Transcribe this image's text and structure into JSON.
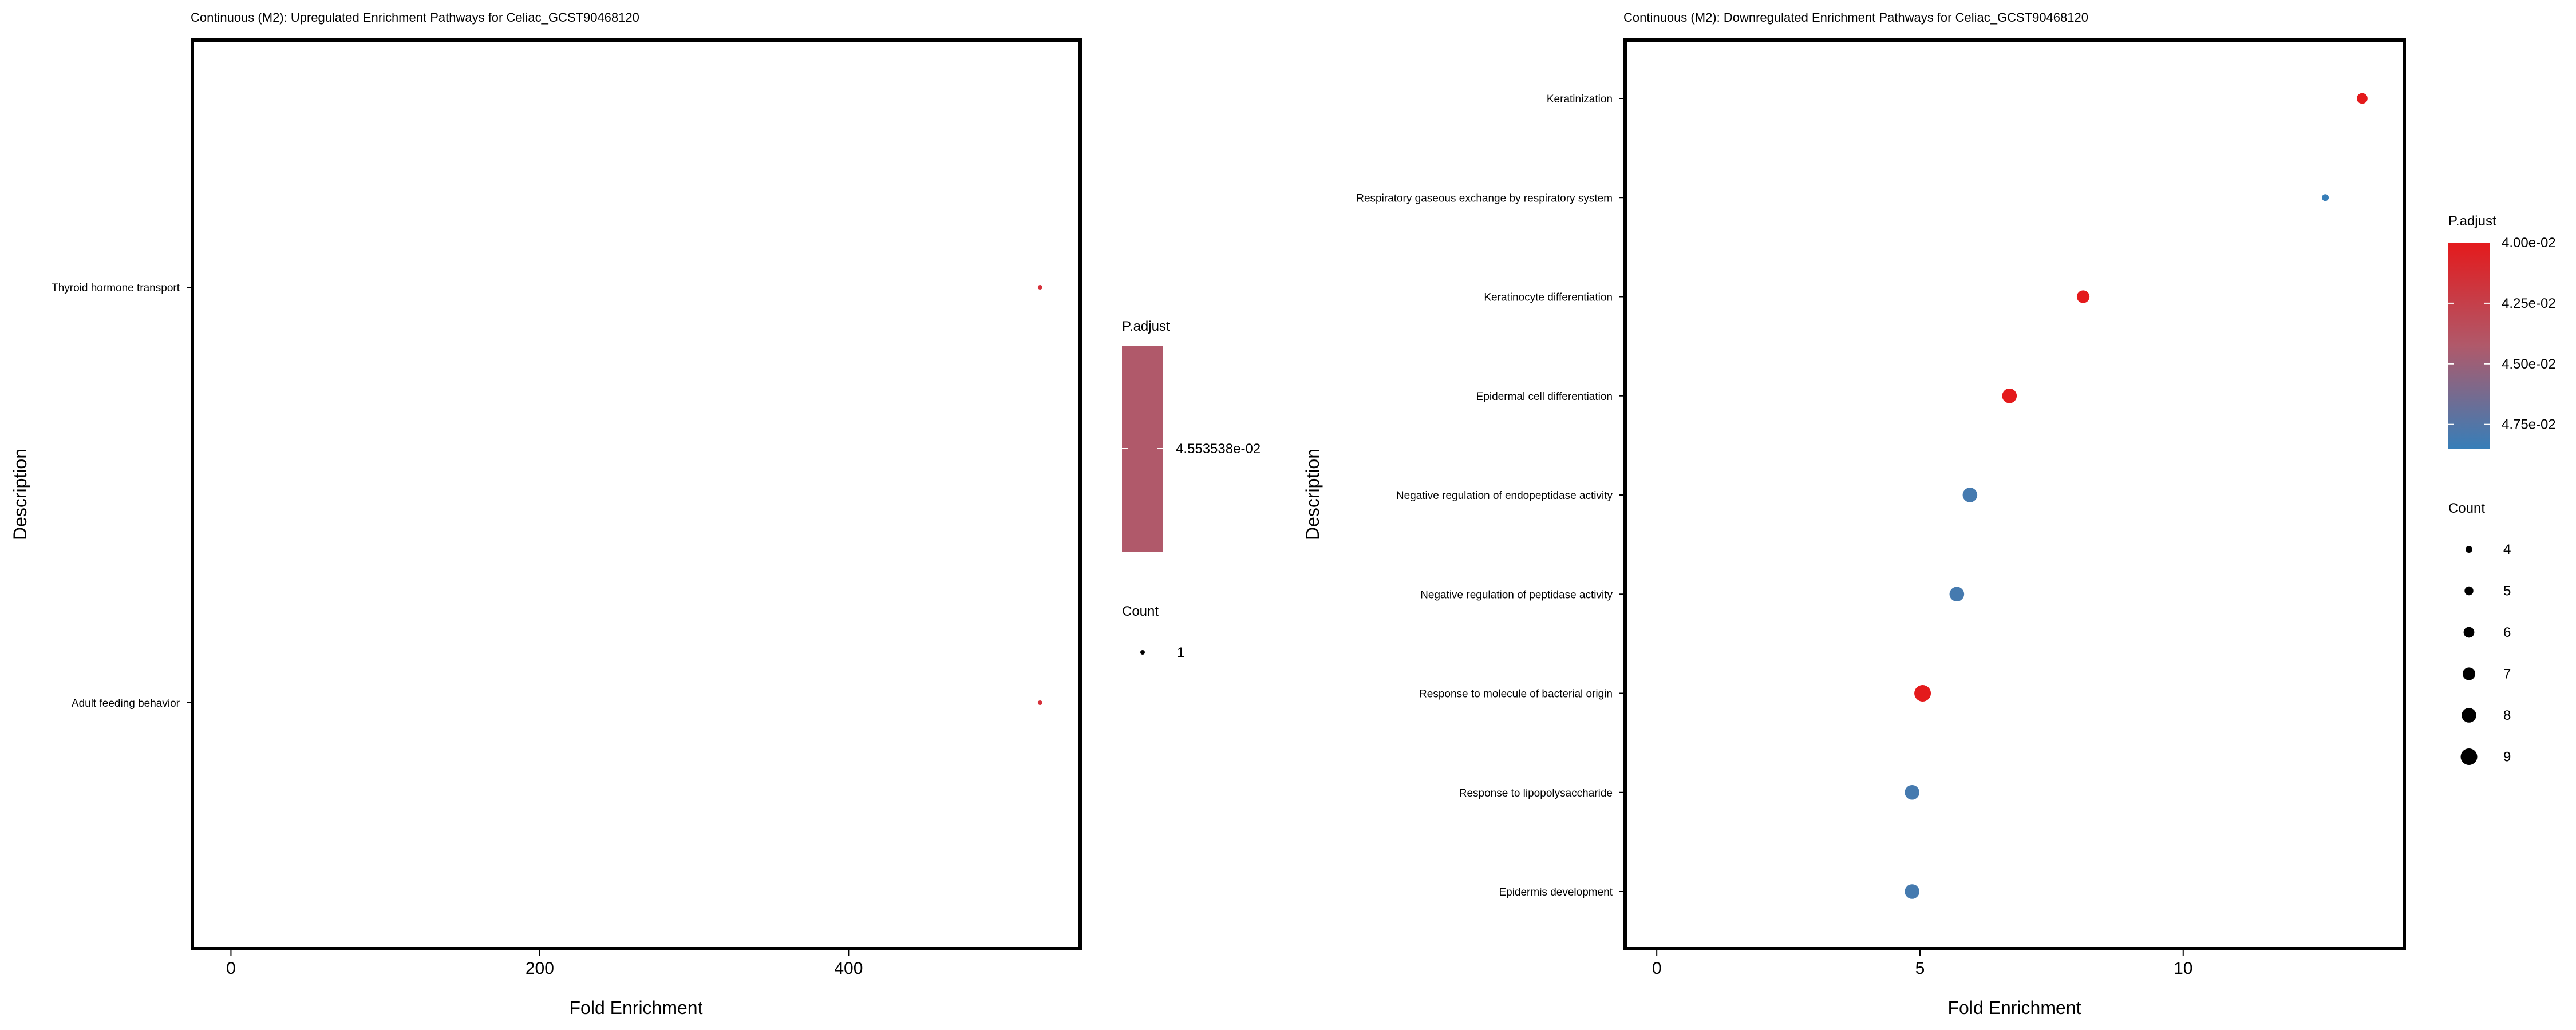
{
  "chart_data": [
    {
      "type": "scatter",
      "title": "Continuous (M2): Upregulated Enrichment Pathways for Celiac_GCST90468120",
      "xlabel": "Fold Enrichment",
      "ylabel": "Description",
      "xlim": [
        -25,
        550
      ],
      "xticks": [
        0,
        200,
        400
      ],
      "grid": false,
      "categories": [
        "Thyroid hormone transport",
        "Adult feeding behavior"
      ],
      "points": [
        {
          "description": "Thyroid hormone transport",
          "x": 524,
          "count": 1,
          "p_adjust": 0.04553538
        },
        {
          "description": "Adult feeding behavior",
          "x": 524,
          "count": 1,
          "p_adjust": 0.04553538
        }
      ],
      "color_legend": {
        "title": "P.adjust",
        "labels": [
          "4.553538e-02"
        ],
        "colors": [
          "#b0596a",
          "#b0596a"
        ]
      },
      "size_legend": {
        "title": "Count",
        "values": [
          1
        ]
      },
      "legend_position": "right"
    },
    {
      "type": "scatter",
      "title": "Continuous (M2): Downregulated Enrichment Pathways for Celiac_GCST90468120",
      "xlabel": "Fold Enrichment",
      "ylabel": "Description",
      "xlim": [
        -0.6,
        14.2
      ],
      "xticks": [
        0,
        5,
        10
      ],
      "grid": false,
      "categories": [
        "Keratinization",
        "Respiratory gaseous exchange by respiratory system",
        "Keratinocyte differentiation",
        "Epidermal cell differentiation",
        "Negative regulation of endopeptidase activity",
        "Negative regulation of peptidase activity",
        "Response to molecule of bacterial origin",
        "Response to lipopolysaccharide",
        "Epidermis development"
      ],
      "points": [
        {
          "description": "Keratinization",
          "x": 13.4,
          "count": 6,
          "p_adjust": 0.04
        },
        {
          "description": "Respiratory gaseous exchange by respiratory system",
          "x": 12.7,
          "count": 4,
          "p_adjust": 0.0485
        },
        {
          "description": "Keratinocyte differentiation",
          "x": 8.1,
          "count": 7,
          "p_adjust": 0.04
        },
        {
          "description": "Epidermal cell differentiation",
          "x": 6.7,
          "count": 8,
          "p_adjust": 0.04
        },
        {
          "description": "Negative regulation of endopeptidase activity",
          "x": 5.95,
          "count": 8,
          "p_adjust": 0.048
        },
        {
          "description": "Negative regulation of peptidase activity",
          "x": 5.7,
          "count": 8,
          "p_adjust": 0.048
        },
        {
          "description": "Response to molecule of bacterial origin",
          "x": 5.05,
          "count": 9,
          "p_adjust": 0.04
        },
        {
          "description": "Response to lipopolysaccharide",
          "x": 4.85,
          "count": 8,
          "p_adjust": 0.048
        },
        {
          "description": "Epidermis development",
          "x": 4.85,
          "count": 8,
          "p_adjust": 0.048
        }
      ],
      "color_legend": {
        "title": "P.adjust",
        "ticks": [
          {
            "label": "4.00e-02",
            "value": 0.04
          },
          {
            "label": "4.25e-02",
            "value": 0.0425
          },
          {
            "label": "4.50e-02",
            "value": 0.045
          },
          {
            "label": "4.75e-02",
            "value": 0.0475
          }
        ],
        "range": [
          0.04,
          0.0485
        ],
        "low_color": "#e41a1c",
        "mid_color": "#b0596a",
        "high_color": "#377eb8"
      },
      "size_legend": {
        "title": "Count",
        "values": [
          4,
          5,
          6,
          7,
          8,
          9
        ]
      },
      "legend_position": "right"
    }
  ]
}
